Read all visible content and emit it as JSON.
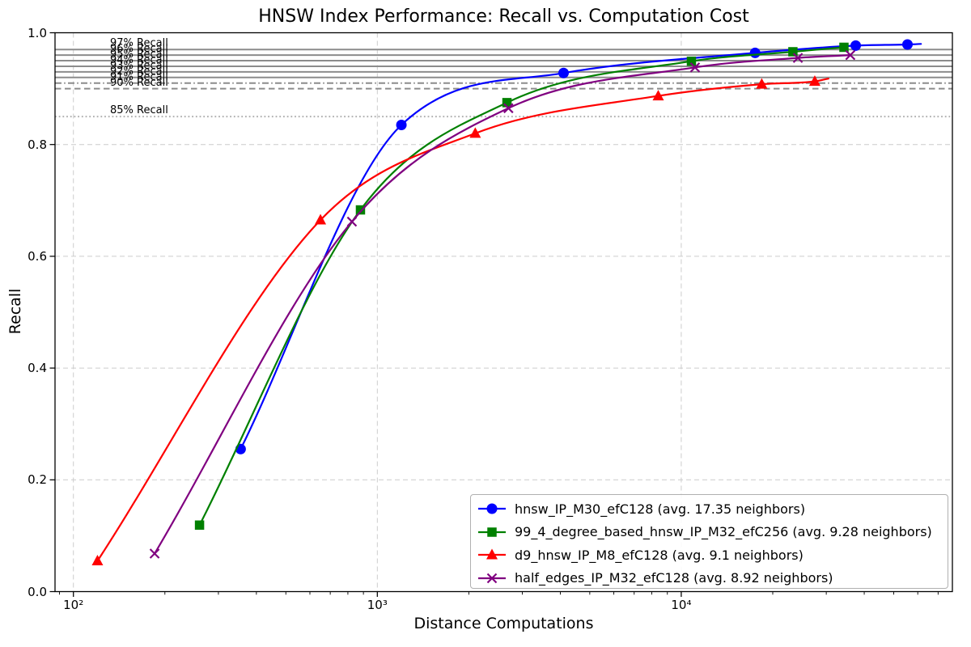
{
  "chart_data": {
    "type": "line",
    "title": "HNSW Index Performance: Recall vs. Computation Cost",
    "xlabel": "Distance Computations",
    "ylabel": "Recall",
    "x_scale": "log",
    "xlim": [
      87,
      78000
    ],
    "ylim": [
      0,
      1
    ],
    "grid": true,
    "legend_position": "lower right",
    "x_ticks": [
      {
        "value": 100,
        "label": "10²"
      },
      {
        "value": 1000,
        "label": "10³"
      },
      {
        "value": 10000,
        "label": "10⁴"
      }
    ],
    "y_ticks": [
      {
        "value": 0.0,
        "label": "0.0"
      },
      {
        "value": 0.2,
        "label": "0.2"
      },
      {
        "value": 0.4,
        "label": "0.4"
      },
      {
        "value": 0.6,
        "label": "0.6"
      },
      {
        "value": 0.8,
        "label": "0.8"
      },
      {
        "value": 1.0,
        "label": "1.0"
      }
    ],
    "series": [
      {
        "name": "hnsw_IP_M30_efC128 (avg. 17.35 neighbors)",
        "color": "#0000ff",
        "marker": "circle",
        "x": [
          355,
          1200,
          4100,
          17500,
          37500,
          55500
        ],
        "y": [
          0.255,
          0.835,
          0.928,
          0.964,
          0.977,
          0.979
        ],
        "line_tail": {
          "x": 61500,
          "y": 0.98
        }
      },
      {
        "name": "99_4_degree_based_hnsw_IP_M32_efC256 (avg. 9.28 neighbors)",
        "color": "#008000",
        "marker": "square",
        "x": [
          260,
          880,
          2670,
          10800,
          23300,
          34300
        ],
        "y": [
          0.119,
          0.683,
          0.875,
          0.949,
          0.966,
          0.974
        ]
      },
      {
        "name": "d9_hnsw_IP_M8_efC128 (avg. 9.1 neighbors)",
        "color": "#ff0000",
        "marker": "triangle-up",
        "x": [
          120,
          650,
          2100,
          8400,
          18400,
          27500
        ],
        "y": [
          0.055,
          0.665,
          0.82,
          0.887,
          0.908,
          0.913
        ],
        "line_tail": {
          "x": 30500,
          "y": 0.918
        }
      },
      {
        "name": "half_edges_IP_M32_efC128 (avg. 8.92 neighbors)",
        "color": "#800080",
        "marker": "x",
        "x": [
          185,
          825,
          2700,
          11100,
          24200,
          36000
        ],
        "y": [
          0.068,
          0.662,
          0.865,
          0.938,
          0.955,
          0.96
        ]
      }
    ],
    "reference_lines": [
      {
        "y": 0.97,
        "style": "solid",
        "label": "97% Recall"
      },
      {
        "y": 0.96,
        "style": "solid",
        "label": "96% Recall"
      },
      {
        "y": 0.95,
        "style": "solid",
        "label": "95% Recall"
      },
      {
        "y": 0.94,
        "style": "solid",
        "label": "94% Recall"
      },
      {
        "y": 0.93,
        "style": "solid",
        "label": "93% Recall"
      },
      {
        "y": 0.92,
        "style": "solid",
        "label": "92% Recall"
      },
      {
        "y": 0.91,
        "style": "dashdot",
        "label": "91% Recall"
      },
      {
        "y": 0.9,
        "style": "dashed",
        "label": "90% Recall"
      },
      {
        "y": 0.85,
        "style": "dotted",
        "label": "85% Recall"
      }
    ],
    "colors": {
      "grid": "#cccccc",
      "reference_line": "#8c8c8c",
      "reference_dotted": "#b0b0b0",
      "spine": "#000000"
    }
  }
}
